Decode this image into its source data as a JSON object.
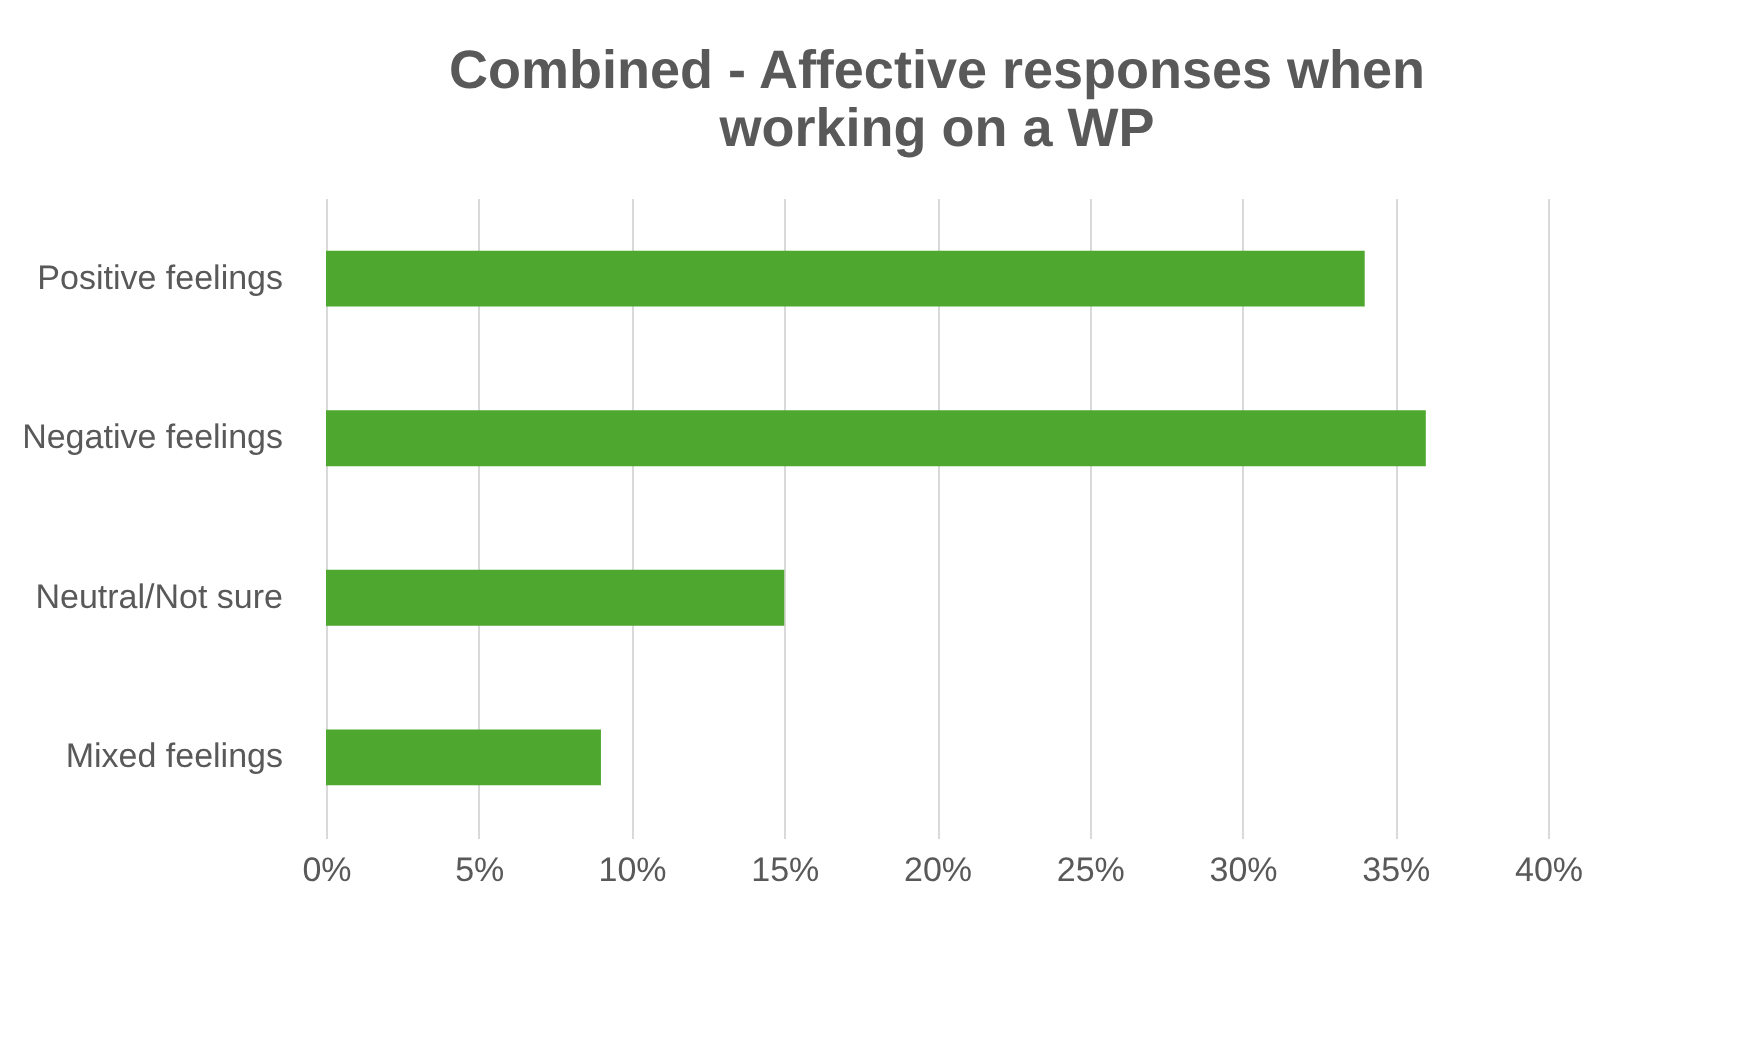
{
  "chart_data": {
    "type": "bar",
    "orientation": "horizontal",
    "title": [
      "Combined - Affective responses when",
      "working on a WP"
    ],
    "categories": [
      "Positive feelings",
      "Negative feelings",
      "Neutral/Not sure",
      "Mixed feelings"
    ],
    "values": [
      34,
      36,
      15,
      9
    ],
    "color": "#4ea72e",
    "xlim": [
      0,
      40
    ],
    "xticks": [
      {
        "value": 0,
        "label": "0%"
      },
      {
        "value": 5,
        "label": "5%"
      },
      {
        "value": 10,
        "label": "10%"
      },
      {
        "value": 15,
        "label": "15%"
      },
      {
        "value": 20,
        "label": "20%"
      },
      {
        "value": 25,
        "label": "25%"
      },
      {
        "value": 30,
        "label": "30%"
      },
      {
        "value": 35,
        "label": "35%"
      },
      {
        "value": 40,
        "label": "40%"
      }
    ],
    "grid": "x"
  }
}
